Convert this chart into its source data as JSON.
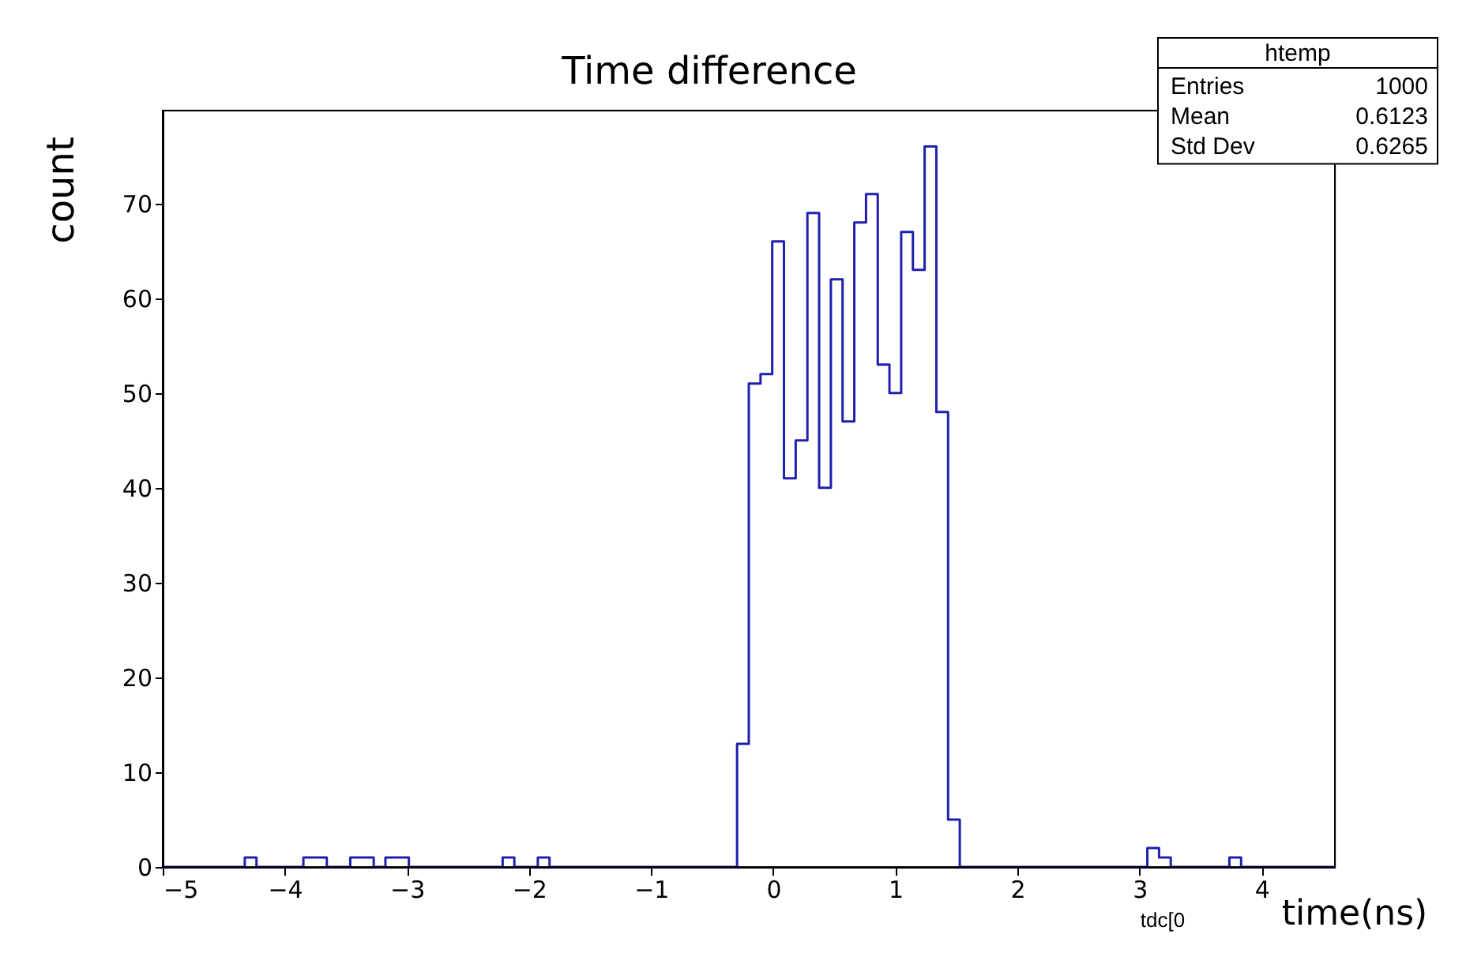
{
  "chart_data": {
    "type": "histogram",
    "title": "Time difference",
    "xlabel": "time(ns)",
    "ylabel": "count",
    "color": "#1f1fb0",
    "bins": [
      -5,
      -4.904,
      -4.808,
      -4.712,
      -4.616,
      -4.52,
      -4.424,
      -4.328,
      -4.232,
      -4.136,
      -4.04,
      -3.944,
      -3.848,
      -3.752,
      -3.656,
      -3.56,
      -3.464,
      -3.368,
      -3.272,
      -3.176,
      -3.08,
      -2.984,
      -2.888,
      -2.792,
      -2.696,
      -2.6,
      -2.504,
      -2.408,
      -2.312,
      -2.216,
      -2.12,
      -2.024,
      -1.928,
      -1.832,
      -1.736,
      -1.64,
      -1.544,
      -1.448,
      -1.352,
      -1.256,
      -1.16,
      -1.064,
      -0.968,
      -0.872,
      -0.776,
      -0.68,
      -0.584,
      -0.488,
      -0.392,
      -0.296,
      -0.2,
      -0.104,
      -0.008,
      0.088,
      0.184,
      0.28,
      0.376,
      0.472,
      0.568,
      0.664,
      0.76,
      0.856,
      0.952,
      1.048,
      1.144,
      1.24,
      1.336,
      1.432,
      1.528,
      1.624,
      1.72,
      1.816,
      1.912,
      2.008,
      2.104,
      2.2,
      2.296,
      2.392,
      2.488,
      2.584,
      2.68,
      2.776,
      2.872,
      2.968,
      3.064,
      3.16,
      3.256,
      3.352,
      3.448,
      3.544,
      3.64,
      3.736,
      3.832,
      3.928,
      4.024,
      4.12,
      4.216,
      4.312,
      4.408,
      4.504,
      4.6
    ],
    "values": [
      0,
      0,
      0,
      0,
      0,
      0,
      0,
      1,
      0,
      0,
      0,
      0,
      1,
      1,
      0,
      0,
      1,
      1,
      0,
      1,
      1,
      0,
      0,
      0,
      0,
      0,
      0,
      0,
      0,
      1,
      0,
      0,
      1,
      0,
      0,
      0,
      0,
      0,
      0,
      0,
      0,
      0,
      0,
      0,
      0,
      0,
      0,
      0,
      0,
      13,
      51,
      52,
      66,
      41,
      45,
      69,
      40,
      62,
      47,
      68,
      71,
      53,
      50,
      67,
      63,
      76,
      48,
      5,
      0,
      0,
      0,
      0,
      0,
      0,
      0,
      0,
      0,
      0,
      0,
      0,
      0,
      0,
      0,
      0,
      2,
      1,
      0,
      0,
      0,
      0,
      0,
      1,
      0,
      0,
      0,
      0,
      0,
      0,
      0,
      0
    ],
    "xlim": [
      -5,
      4.6
    ],
    "ylim": [
      0,
      79.8
    ],
    "xticks": [
      -5,
      -4,
      -3,
      -2,
      -1,
      0,
      1,
      2,
      3,
      4
    ],
    "yticks": [
      0,
      10,
      20,
      30,
      40,
      50,
      60,
      70
    ],
    "grid": false,
    "annotations": [
      "htemp",
      "Entries",
      "1000",
      "Mean",
      "0.6123",
      "Std Dev",
      "0.6265",
      "tdc[0"
    ]
  }
}
